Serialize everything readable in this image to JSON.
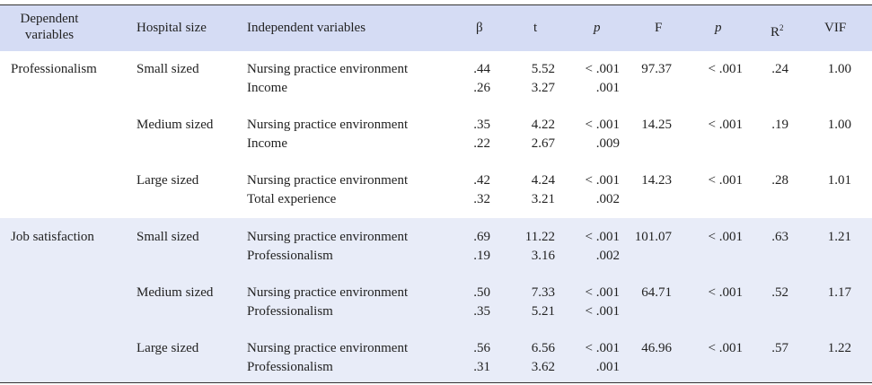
{
  "table": {
    "header": {
      "dependent": "Dependent variables",
      "size": "Hospital size",
      "independent": "Independent variables",
      "beta": "β",
      "t": "t",
      "p": "p",
      "F": "F",
      "p2": "p",
      "r2": "R",
      "r2_sup": "2",
      "vif": "VIF"
    },
    "groups": [
      {
        "dependent": "Professionalism",
        "sizes": [
          {
            "size": "Small sized",
            "F": "97.37",
            "p": "< .001",
            "r2": ".24",
            "vif": "1.00",
            "predictors": [
              {
                "name": "Nursing practice environment",
                "beta": ".44",
                "t": "5.52",
                "p": "< .001"
              },
              {
                "name": "Income",
                "beta": ".26",
                "t": "3.27",
                "p": ".001"
              }
            ]
          },
          {
            "size": "Medium sized",
            "F": "14.25",
            "p": "< .001",
            "r2": ".19",
            "vif": "1.00",
            "predictors": [
              {
                "name": "Nursing practice environment",
                "beta": ".35",
                "t": "4.22",
                "p": "< .001"
              },
              {
                "name": "Income",
                "beta": ".22",
                "t": "2.67",
                "p": ".009"
              }
            ]
          },
          {
            "size": "Large sized",
            "F": "14.23",
            "p": "< .001",
            "r2": ".28",
            "vif": "1.01",
            "predictors": [
              {
                "name": "Nursing practice environment",
                "beta": ".42",
                "t": "4.24",
                "p": "< .001"
              },
              {
                "name": "Total experience",
                "beta": ".32",
                "t": "3.21",
                "p": ".002"
              }
            ]
          }
        ]
      },
      {
        "dependent": "Job satisfaction",
        "sizes": [
          {
            "size": "Small sized",
            "F": "101.07",
            "p": "< .001",
            "r2": ".63",
            "vif": "1.21",
            "predictors": [
              {
                "name": "Nursing practice environment",
                "beta": ".69",
                "t": "11.22",
                "p": "< .001"
              },
              {
                "name": "Professionalism",
                "beta": ".19",
                "t": "3.16",
                "p": ".002"
              }
            ]
          },
          {
            "size": "Medium sized",
            "F": "64.71",
            "p": "< .001",
            "r2": ".52",
            "vif": "1.17",
            "predictors": [
              {
                "name": "Nursing practice environment",
                "beta": ".50",
                "t": "7.33",
                "p": "< .001"
              },
              {
                "name": "Professionalism",
                "beta": ".35",
                "t": "5.21",
                "p": "< .001"
              }
            ]
          },
          {
            "size": "Large sized",
            "F": "46.96",
            "p": "< .001",
            "r2": ".57",
            "vif": "1.22",
            "predictors": [
              {
                "name": "Nursing practice environment",
                "beta": ".56",
                "t": "6.56",
                "p": "< .001"
              },
              {
                "name": "Professionalism",
                "beta": ".31",
                "t": "3.62",
                "p": ".001"
              }
            ]
          }
        ]
      }
    ]
  }
}
